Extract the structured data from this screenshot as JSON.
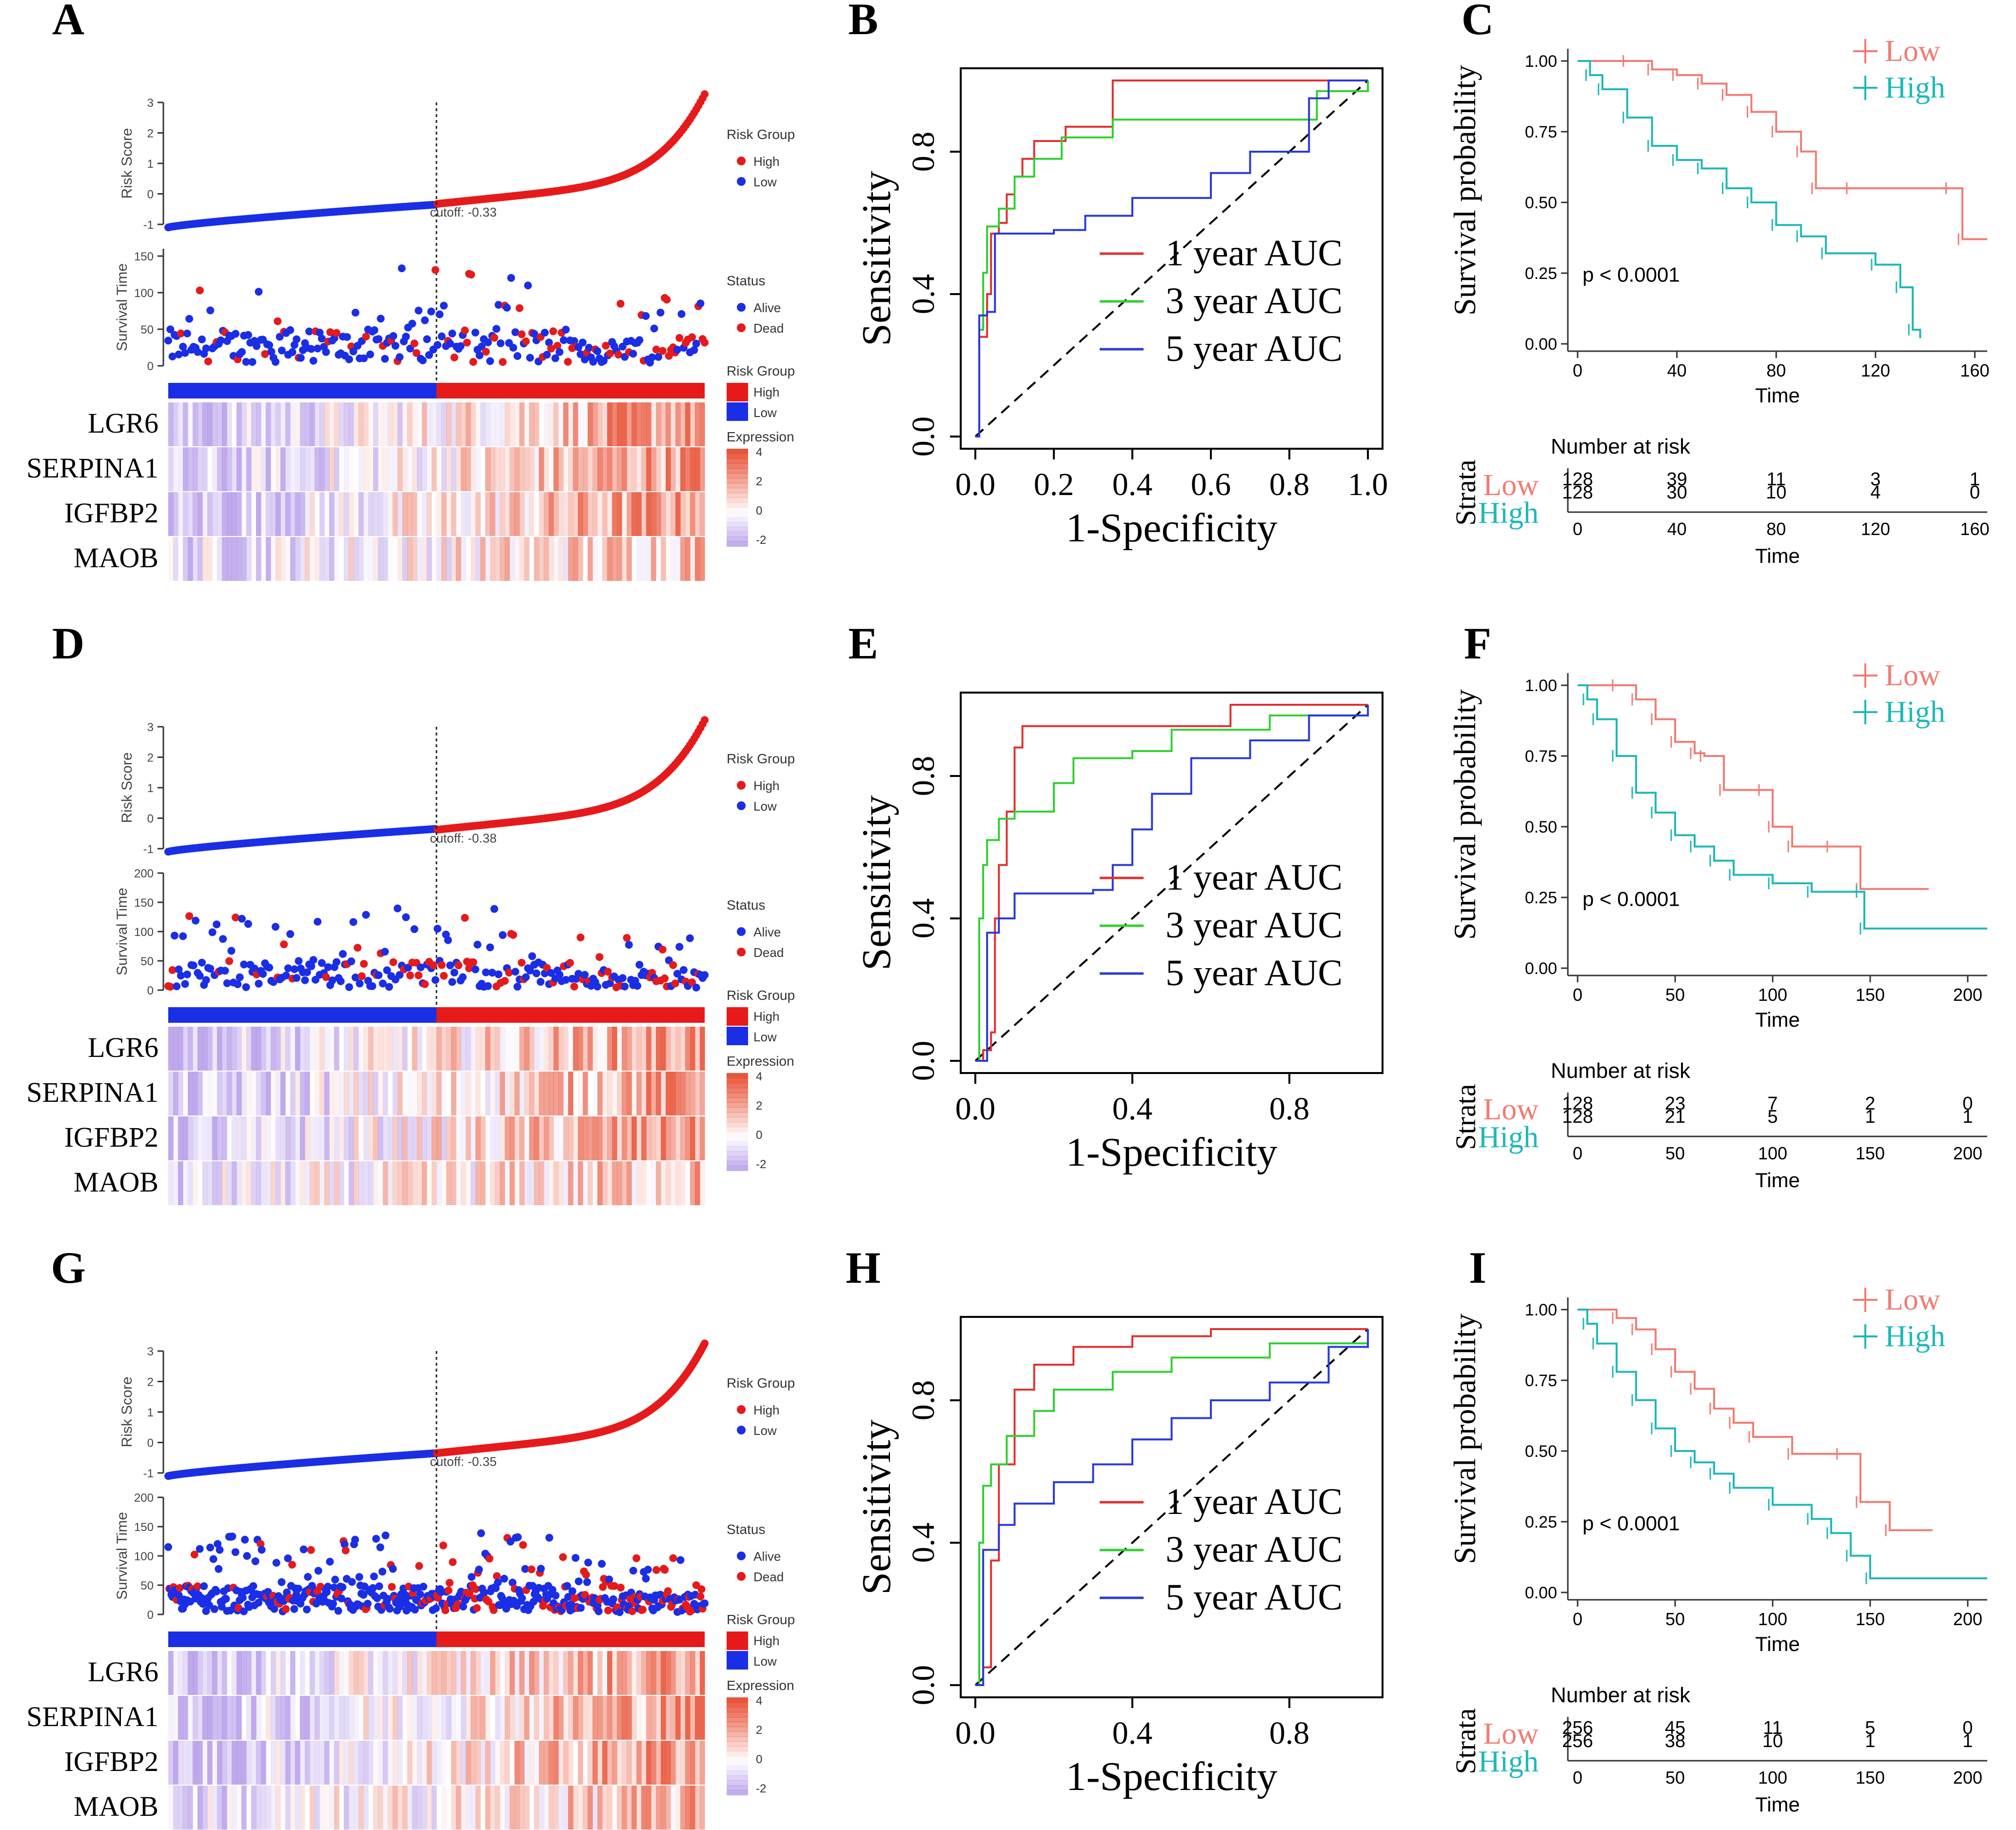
{
  "panel_letters": [
    "A",
    "B",
    "C",
    "D",
    "E",
    "F",
    "G",
    "H",
    "I"
  ],
  "colors": {
    "high": "#e61a1a",
    "low": "#1a2ee6",
    "km_low": "#f07c74",
    "km_high": "#1fb8b8",
    "roc1": "#e03030",
    "roc3": "#30d030",
    "roc5": "#2a3ad8",
    "heat_pos": "#e8553a",
    "heat_neg": "#a98be6"
  },
  "risk_labels": {
    "risk_score": "Risk Score",
    "survival_time": "Survival Time",
    "risk_group": "Risk Group",
    "high": "High",
    "low": "Low",
    "status": "Status",
    "alive": "Alive",
    "dead": "Dead",
    "expression": "Expression",
    "genes": [
      "LGR6",
      "SERPINA1",
      "IGFBP2",
      "MAOB"
    ],
    "expr_ticks": [
      "4",
      "2",
      "0",
      "-2"
    ]
  },
  "roc_labels": {
    "xlabel": "1-Specificity",
    "ylabel": "Sensitivity",
    "legend": [
      "1 year AUC",
      "3 year AUC",
      "5 year AUC"
    ]
  },
  "km_labels": {
    "ylabel": "Survival probability",
    "xlabel": "Time",
    "legend_low": "Low",
    "legend_high": "High",
    "pvalue": "p < 0.0001",
    "number_at_risk": "Number at risk",
    "strata": "Strata",
    "yticks": [
      "1.00",
      "0.75",
      "0.50",
      "0.25",
      "0.00"
    ]
  },
  "chart_data": [
    {
      "panel": "A",
      "type": "scatter",
      "cutoff_label": "cutoff: -0.33",
      "risk_score": {
        "ylim": [
          -1,
          3
        ],
        "yticks": [
          "3",
          "2",
          "1",
          "0",
          "-1"
        ],
        "n": 256,
        "cutoff": -0.33
      },
      "survival": {
        "ylim": [
          0,
          160
        ],
        "yticks": [
          "150",
          "100",
          "50",
          "0"
        ]
      }
    },
    {
      "panel": "B",
      "type": "line",
      "xlim": [
        0,
        1
      ],
      "ylim": [
        0,
        1
      ],
      "xticks": [
        "0.0",
        "0.2",
        "0.4",
        "0.6",
        "0.8",
        "1.0"
      ],
      "yticks": [
        "0.0",
        "0.4",
        "0.8"
      ],
      "series": [
        {
          "name": "1 year AUC",
          "points": [
            [
              0,
              0
            ],
            [
              0.01,
              0.28
            ],
            [
              0.03,
              0.4
            ],
            [
              0.04,
              0.57
            ],
            [
              0.06,
              0.6
            ],
            [
              0.08,
              0.68
            ],
            [
              0.1,
              0.73
            ],
            [
              0.12,
              0.78
            ],
            [
              0.15,
              0.83
            ],
            [
              0.23,
              0.87
            ],
            [
              0.35,
              1.0
            ],
            [
              1.0,
              1.0
            ]
          ]
        },
        {
          "name": "3 year AUC",
          "points": [
            [
              0,
              0
            ],
            [
              0.01,
              0.3
            ],
            [
              0.02,
              0.46
            ],
            [
              0.03,
              0.59
            ],
            [
              0.06,
              0.64
            ],
            [
              0.1,
              0.73
            ],
            [
              0.15,
              0.78
            ],
            [
              0.22,
              0.84
            ],
            [
              0.35,
              0.89
            ],
            [
              0.82,
              0.89
            ],
            [
              0.87,
              0.97
            ],
            [
              1.0,
              1.0
            ]
          ]
        },
        {
          "name": "5 year AUC",
          "points": [
            [
              0,
              0
            ],
            [
              0.01,
              0.34
            ],
            [
              0.03,
              0.35
            ],
            [
              0.05,
              0.57
            ],
            [
              0.2,
              0.58
            ],
            [
              0.28,
              0.62
            ],
            [
              0.4,
              0.67
            ],
            [
              0.6,
              0.74
            ],
            [
              0.7,
              0.8
            ],
            [
              0.8,
              0.8
            ],
            [
              0.85,
              0.95
            ],
            [
              0.9,
              1.0
            ],
            [
              1.0,
              1.0
            ]
          ]
        }
      ]
    },
    {
      "panel": "C",
      "type": "line",
      "xlim": [
        0,
        165
      ],
      "ylim": [
        0,
        1.02
      ],
      "xticks": [
        "0",
        "40",
        "80",
        "120",
        "160"
      ],
      "series": [
        {
          "name": "Low",
          "points": [
            [
              0,
              1.0
            ],
            [
              20,
              1.0
            ],
            [
              30,
              0.97
            ],
            [
              40,
              0.95
            ],
            [
              50,
              0.92
            ],
            [
              60,
              0.88
            ],
            [
              70,
              0.82
            ],
            [
              80,
              0.75
            ],
            [
              90,
              0.68
            ],
            [
              96,
              0.55
            ],
            [
              110,
              0.55
            ],
            [
              150,
              0.55
            ],
            [
              155,
              0.37
            ],
            [
              165,
              0.37
            ]
          ]
        },
        {
          "name": "High",
          "points": [
            [
              0,
              1.0
            ],
            [
              5,
              0.95
            ],
            [
              10,
              0.9
            ],
            [
              20,
              0.8
            ],
            [
              30,
              0.7
            ],
            [
              40,
              0.65
            ],
            [
              50,
              0.62
            ],
            [
              60,
              0.55
            ],
            [
              70,
              0.5
            ],
            [
              80,
              0.42
            ],
            [
              90,
              0.38
            ],
            [
              100,
              0.32
            ],
            [
              120,
              0.28
            ],
            [
              130,
              0.2
            ],
            [
              135,
              0.05
            ],
            [
              138,
              0.02
            ]
          ]
        }
      ],
      "risk_table": {
        "low": [
          "128",
          "39",
          "11",
          "3",
          "1"
        ],
        "high": [
          "128",
          "30",
          "10",
          "4",
          "0"
        ]
      }
    },
    {
      "panel": "D",
      "type": "scatter",
      "cutoff_label": "cutoff: -0.38",
      "risk_score": {
        "ylim": [
          -1,
          3
        ],
        "yticks": [
          "3",
          "2",
          "1",
          "0",
          "-1"
        ],
        "n": 256,
        "cutoff": -0.38
      },
      "survival": {
        "ylim": [
          0,
          200
        ],
        "yticks": [
          "200",
          "150",
          "100",
          "50",
          "0"
        ]
      }
    },
    {
      "panel": "E",
      "type": "line",
      "xlim": [
        0,
        1
      ],
      "ylim": [
        0,
        1
      ],
      "xticks": [
        "0.0",
        "0.4",
        "0.8"
      ],
      "yticks": [
        "0.0",
        "0.4",
        "0.8"
      ],
      "series": [
        {
          "name": "1 year AUC",
          "points": [
            [
              0,
              0
            ],
            [
              0.02,
              0.03
            ],
            [
              0.04,
              0.08
            ],
            [
              0.05,
              0.4
            ],
            [
              0.06,
              0.55
            ],
            [
              0.08,
              0.7
            ],
            [
              0.1,
              0.88
            ],
            [
              0.12,
              0.94
            ],
            [
              0.6,
              0.94
            ],
            [
              0.65,
              1.0
            ],
            [
              1.0,
              1.0
            ]
          ]
        },
        {
          "name": "3 year AUC",
          "points": [
            [
              0,
              0
            ],
            [
              0.01,
              0.4
            ],
            [
              0.02,
              0.55
            ],
            [
              0.03,
              0.62
            ],
            [
              0.06,
              0.68
            ],
            [
              0.1,
              0.7
            ],
            [
              0.2,
              0.78
            ],
            [
              0.25,
              0.85
            ],
            [
              0.4,
              0.87
            ],
            [
              0.5,
              0.93
            ],
            [
              0.75,
              0.97
            ],
            [
              1.0,
              1.0
            ]
          ]
        },
        {
          "name": "5 year AUC",
          "points": [
            [
              0,
              0
            ],
            [
              0.03,
              0.36
            ],
            [
              0.06,
              0.4
            ],
            [
              0.1,
              0.47
            ],
            [
              0.3,
              0.48
            ],
            [
              0.35,
              0.55
            ],
            [
              0.4,
              0.65
            ],
            [
              0.45,
              0.75
            ],
            [
              0.55,
              0.85
            ],
            [
              0.7,
              0.9
            ],
            [
              0.85,
              0.97
            ],
            [
              1.0,
              1.0
            ]
          ]
        }
      ]
    },
    {
      "panel": "F",
      "type": "line",
      "xlim": [
        0,
        210
      ],
      "ylim": [
        0,
        1.02
      ],
      "xticks": [
        "0",
        "50",
        "100",
        "150",
        "200"
      ],
      "series": [
        {
          "name": "Low",
          "points": [
            [
              0,
              1.0
            ],
            [
              20,
              1.0
            ],
            [
              30,
              0.95
            ],
            [
              40,
              0.88
            ],
            [
              50,
              0.8
            ],
            [
              60,
              0.76
            ],
            [
              65,
              0.75
            ],
            [
              75,
              0.63
            ],
            [
              95,
              0.63
            ],
            [
              100,
              0.5
            ],
            [
              110,
              0.43
            ],
            [
              130,
              0.43
            ],
            [
              145,
              0.28
            ],
            [
              180,
              0.28
            ]
          ]
        },
        {
          "name": "High",
          "points": [
            [
              0,
              1.0
            ],
            [
              5,
              0.95
            ],
            [
              10,
              0.88
            ],
            [
              20,
              0.75
            ],
            [
              30,
              0.62
            ],
            [
              40,
              0.55
            ],
            [
              50,
              0.47
            ],
            [
              60,
              0.43
            ],
            [
              70,
              0.38
            ],
            [
              80,
              0.33
            ],
            [
              100,
              0.3
            ],
            [
              120,
              0.27
            ],
            [
              145,
              0.27
            ],
            [
              147,
              0.14
            ],
            [
              210,
              0.14
            ]
          ]
        }
      ],
      "risk_table": {
        "low": [
          "128",
          "23",
          "7",
          "2",
          "0"
        ],
        "high": [
          "128",
          "21",
          "5",
          "1",
          "1"
        ]
      }
    },
    {
      "panel": "G",
      "type": "scatter",
      "cutoff_label": "cutoff: -0.35",
      "risk_score": {
        "ylim": [
          -1,
          3
        ],
        "yticks": [
          "3",
          "2",
          "1",
          "0",
          "-1"
        ],
        "n": 512,
        "cutoff": -0.35
      },
      "survival": {
        "ylim": [
          0,
          200
        ],
        "yticks": [
          "200",
          "150",
          "100",
          "50",
          "0"
        ]
      }
    },
    {
      "panel": "H",
      "type": "line",
      "xlim": [
        0,
        1
      ],
      "ylim": [
        0,
        1
      ],
      "xticks": [
        "0.0",
        "0.4",
        "0.8"
      ],
      "yticks": [
        "0.0",
        "0.4",
        "0.8"
      ],
      "series": [
        {
          "name": "1 year AUC",
          "points": [
            [
              0,
              0
            ],
            [
              0.02,
              0.05
            ],
            [
              0.04,
              0.35
            ],
            [
              0.06,
              0.62
            ],
            [
              0.1,
              0.83
            ],
            [
              0.15,
              0.9
            ],
            [
              0.25,
              0.95
            ],
            [
              0.4,
              0.98
            ],
            [
              0.6,
              1.0
            ],
            [
              1.0,
              1.0
            ]
          ]
        },
        {
          "name": "3 year AUC",
          "points": [
            [
              0,
              0
            ],
            [
              0.01,
              0.4
            ],
            [
              0.02,
              0.56
            ],
            [
              0.04,
              0.62
            ],
            [
              0.08,
              0.7
            ],
            [
              0.15,
              0.77
            ],
            [
              0.2,
              0.83
            ],
            [
              0.35,
              0.88
            ],
            [
              0.5,
              0.92
            ],
            [
              0.75,
              0.96
            ],
            [
              1.0,
              1.0
            ]
          ]
        },
        {
          "name": "5 year AUC",
          "points": [
            [
              0,
              0
            ],
            [
              0.02,
              0.38
            ],
            [
              0.06,
              0.45
            ],
            [
              0.1,
              0.51
            ],
            [
              0.2,
              0.57
            ],
            [
              0.3,
              0.62
            ],
            [
              0.4,
              0.69
            ],
            [
              0.5,
              0.75
            ],
            [
              0.6,
              0.8
            ],
            [
              0.75,
              0.85
            ],
            [
              0.9,
              0.95
            ],
            [
              1.0,
              1.0
            ]
          ]
        }
      ]
    },
    {
      "panel": "I",
      "type": "line",
      "xlim": [
        0,
        210
      ],
      "ylim": [
        0,
        1.02
      ],
      "xticks": [
        "0",
        "50",
        "100",
        "150",
        "200"
      ],
      "series": [
        {
          "name": "Low",
          "points": [
            [
              0,
              1.0
            ],
            [
              20,
              0.97
            ],
            [
              30,
              0.93
            ],
            [
              40,
              0.86
            ],
            [
              50,
              0.78
            ],
            [
              60,
              0.72
            ],
            [
              70,
              0.65
            ],
            [
              80,
              0.6
            ],
            [
              90,
              0.55
            ],
            [
              110,
              0.49
            ],
            [
              135,
              0.49
            ],
            [
              145,
              0.32
            ],
            [
              160,
              0.22
            ],
            [
              182,
              0.22
            ]
          ]
        },
        {
          "name": "High",
          "points": [
            [
              0,
              1.0
            ],
            [
              5,
              0.95
            ],
            [
              10,
              0.88
            ],
            [
              20,
              0.78
            ],
            [
              30,
              0.68
            ],
            [
              40,
              0.58
            ],
            [
              50,
              0.5
            ],
            [
              60,
              0.46
            ],
            [
              70,
              0.42
            ],
            [
              80,
              0.37
            ],
            [
              100,
              0.31
            ],
            [
              120,
              0.26
            ],
            [
              130,
              0.21
            ],
            [
              140,
              0.13
            ],
            [
              150,
              0.05
            ],
            [
              210,
              0.05
            ]
          ]
        }
      ],
      "risk_table": {
        "low": [
          "256",
          "45",
          "11",
          "5",
          "0"
        ],
        "high": [
          "256",
          "38",
          "10",
          "1",
          "1"
        ]
      }
    }
  ]
}
